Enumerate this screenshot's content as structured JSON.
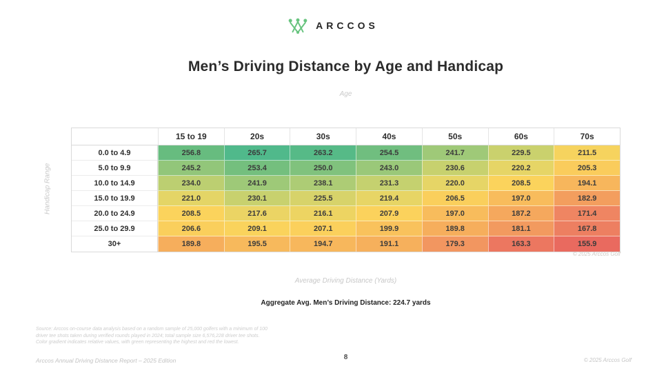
{
  "logo": {
    "brand": "ARCCOS",
    "color": "#68c47f"
  },
  "page": {
    "title": "Men’s Driving Distance by Age and Handicap"
  },
  "chart_data": {
    "type": "heatmap",
    "title": "Men’s Driving Distance by Age and Handicap",
    "xlabel": "Age",
    "ylabel": "Handicap Range",
    "value_label": "Average Driving Distance (Yards)",
    "columns": [
      "15 to 19",
      "20s",
      "30s",
      "40s",
      "50s",
      "60s",
      "70s"
    ],
    "rows": [
      "0.0 to 4.9",
      "5.0 to 9.9",
      "10.0 to 14.9",
      "15.0 to 19.9",
      "20.0 to 24.9",
      "25.0 to 29.9",
      "30+"
    ],
    "values": [
      [
        "256.8",
        "265.7",
        "263.2",
        "254.5",
        "241.7",
        "229.5",
        "211.5"
      ],
      [
        "245.2",
        "253.4",
        "250.0",
        "243.0",
        "230.6",
        "220.2",
        "205.3"
      ],
      [
        "234.0",
        "241.9",
        "238.1",
        "231.3",
        "220.0",
        "208.5",
        "194.1"
      ],
      [
        "221.0",
        "230.1",
        "225.5",
        "219.4",
        "206.5",
        "197.0",
        "182.9"
      ],
      [
        "208.5",
        "217.6",
        "216.1",
        "207.9",
        "197.0",
        "187.2",
        "171.4"
      ],
      [
        "206.6",
        "209.1",
        "207.1",
        "199.9",
        "189.8",
        "181.1",
        "167.8"
      ],
      [
        "189.8",
        "195.5",
        "194.7",
        "191.1",
        "179.3",
        "163.3",
        "155.9"
      ]
    ],
    "scale_min": 155.9,
    "scale_max": 265.7,
    "color_scale": [
      {
        "t": 0.0,
        "color": "#e96a5f"
      },
      {
        "t": 0.15,
        "color": "#ef8762"
      },
      {
        "t": 0.31,
        "color": "#f6ae5c"
      },
      {
        "t": 0.48,
        "color": "#fbd35c"
      },
      {
        "t": 0.6,
        "color": "#e3d567"
      },
      {
        "t": 0.72,
        "color": "#b9cf72"
      },
      {
        "t": 0.82,
        "color": "#8fc57b"
      },
      {
        "t": 0.93,
        "color": "#63bb80"
      },
      {
        "t": 1.0,
        "color": "#50b98b"
      }
    ]
  },
  "annotations": {
    "table_copyright": "© 2025 Arccos Golf",
    "aggregate": "Aggregate Avg. Men’s Driving Distance: 224.7 yards",
    "source_lines": [
      "Source: Arccos on-course data analysis based on a random sample of 25,000 golfers with a minimum of 100",
      "driver tee shots taken during verified rounds played in 2024; total sample size 6,576,228 driver tee shots.",
      "Color gradient indicates relative values, with green representing the highest and red the lowest."
    ]
  },
  "footer": {
    "left": "Arccos Annual Driving Distance Report – 2025 Edition",
    "page": "8",
    "right": "© 2025 Arccos Golf"
  }
}
